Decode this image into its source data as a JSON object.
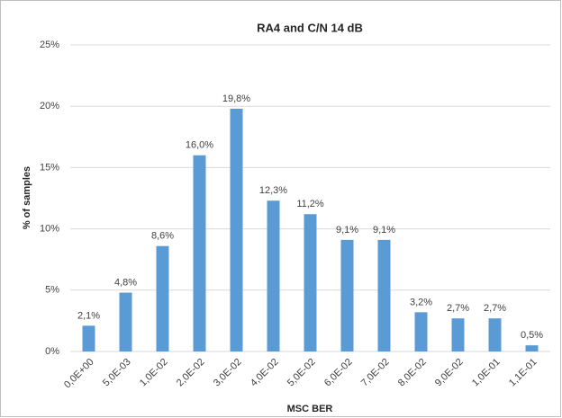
{
  "chart_data": {
    "type": "bar",
    "title": "RA4 and C/N 14 dB",
    "x_label": "MSC BER",
    "y_label": "% of samples",
    "categories": [
      "0,0E+00",
      "5,0E-03",
      "1,0E-02",
      "2,0E-02",
      "3,0E-02",
      "4,0E-02",
      "5,0E-02",
      "6,0E-02",
      "7,0E-02",
      "8,0E-02",
      "9,0E-02",
      "1,0E-01",
      "1,1E-01"
    ],
    "values": [
      2.1,
      4.8,
      8.6,
      16.0,
      19.8,
      12.3,
      11.2,
      9.1,
      9.1,
      3.2,
      2.7,
      2.7,
      0.5
    ],
    "value_labels": [
      "2,1%",
      "4,8%",
      "8,6%",
      "16,0%",
      "19,8%",
      "12,3%",
      "11,2%",
      "9,1%",
      "9,1%",
      "3,2%",
      "2,7%",
      "2,7%",
      "0,5%"
    ],
    "color": "#5b9bd5",
    "ylim": [
      0,
      25
    ],
    "yticks": [
      {
        "value": 0,
        "label": "0%"
      },
      {
        "value": 5,
        "label": "5%"
      },
      {
        "value": 10,
        "label": "10%"
      },
      {
        "value": 15,
        "label": "15%"
      },
      {
        "value": 20,
        "label": "20%"
      },
      {
        "value": 25,
        "label": "25%"
      }
    ],
    "grid": true
  }
}
